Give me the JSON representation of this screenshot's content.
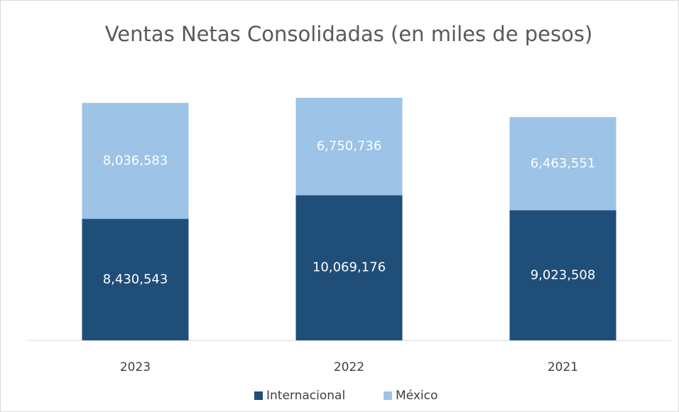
{
  "chart_data": {
    "type": "stacked_bar",
    "title": "Ventas Netas Consolidadas (en miles de pesos)",
    "categories": [
      "2023",
      "2022",
      "2021"
    ],
    "series": [
      {
        "name": "Internacional",
        "color": "#1f4e79",
        "values": [
          8430543,
          10069176,
          9023508
        ],
        "value_labels": [
          "8,430,543",
          "10,069,176",
          "9,023,508"
        ]
      },
      {
        "name": "México",
        "color": "#9dc3e6",
        "values": [
          8036583,
          6750736,
          6463551
        ],
        "value_labels": [
          "8,036,583",
          "6,750,736",
          "6,463,551"
        ]
      }
    ],
    "legend": "bottom"
  }
}
